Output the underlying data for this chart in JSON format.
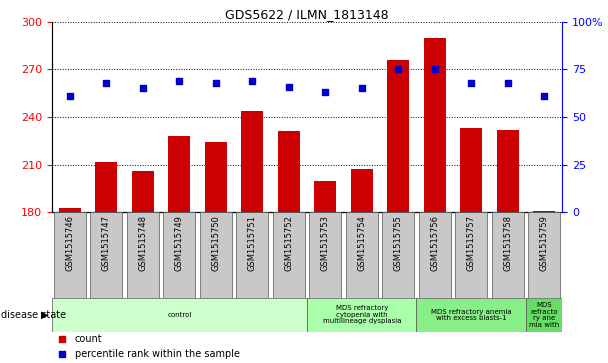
{
  "title": "GDS5622 / ILMN_1813148",
  "samples": [
    "GSM1515746",
    "GSM1515747",
    "GSM1515748",
    "GSM1515749",
    "GSM1515750",
    "GSM1515751",
    "GSM1515752",
    "GSM1515753",
    "GSM1515754",
    "GSM1515755",
    "GSM1515756",
    "GSM1515757",
    "GSM1515758",
    "GSM1515759"
  ],
  "counts": [
    183,
    212,
    206,
    228,
    224,
    244,
    231,
    200,
    207,
    276,
    290,
    233,
    232,
    181
  ],
  "percentiles": [
    61,
    68,
    65,
    69,
    68,
    69,
    66,
    63,
    65,
    75,
    75,
    68,
    68,
    61
  ],
  "ylim_left": [
    180,
    300
  ],
  "ylim_right": [
    0,
    100
  ],
  "yticks_left": [
    180,
    210,
    240,
    270,
    300
  ],
  "yticks_right": [
    0,
    25,
    50,
    75,
    100
  ],
  "bar_color": "#CC0000",
  "dot_color": "#0000CC",
  "disease_groups": [
    {
      "label": "control",
      "start": 0,
      "end": 7,
      "color": "#CCFFCC"
    },
    {
      "label": "MDS refractory\ncytopenia with\nmultilineage dysplasia",
      "start": 7,
      "end": 10,
      "color": "#AAFFAA"
    },
    {
      "label": "MDS refractory anemia\nwith excess blasts-1",
      "start": 10,
      "end": 13,
      "color": "#88EE88"
    },
    {
      "label": "MDS\nrefracto\nry ane\nmia with",
      "start": 13,
      "end": 14,
      "color": "#66DD66"
    }
  ],
  "xlabel_disease": "disease state",
  "legend_count": "count",
  "legend_percentile": "percentile rank within the sample"
}
